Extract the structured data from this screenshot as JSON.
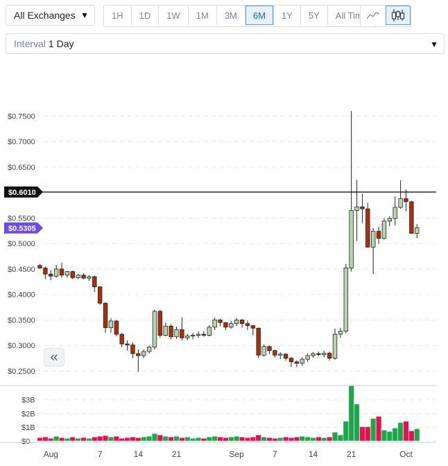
{
  "controls": {
    "exchange": "All Exchanges",
    "ranges": [
      "1H",
      "1D",
      "1W",
      "1M",
      "3M",
      "6M",
      "1Y",
      "5Y",
      "All Time"
    ],
    "active_range": "6M",
    "chart_types": [
      "line-chart-icon",
      "candlestick-icon"
    ],
    "active_type": "candlestick-icon",
    "interval_label": "Interval",
    "interval_value": "1 Day"
  },
  "chart_data": {
    "type": "candlestick",
    "price_axis": {
      "ticks": [
        "$0.7500",
        "$0.7000",
        "$0.6500",
        "$0.5500",
        "$0.5000",
        "$0.4500",
        "$0.4000",
        "$0.3500",
        "$0.3000",
        "$0.2500"
      ],
      "tick_values": [
        0.75,
        0.7,
        0.65,
        0.55,
        0.5,
        0.45,
        0.4,
        0.35,
        0.3,
        0.25
      ],
      "range": [
        0.235,
        0.775
      ]
    },
    "volume_axis": {
      "ticks": [
        "$3B",
        "$2B",
        "$1B",
        "$0"
      ],
      "tick_values": [
        3,
        2,
        1,
        0
      ],
      "range": [
        0,
        4.1
      ]
    },
    "x_labels": [
      {
        "label": "Aug",
        "index": 2
      },
      {
        "label": "7",
        "index": 11
      },
      {
        "label": "14",
        "index": 18
      },
      {
        "label": "21",
        "index": 25
      },
      {
        "label": "Sep",
        "index": 36
      },
      {
        "label": "7",
        "index": 43
      },
      {
        "label": "14",
        "index": 50
      },
      {
        "label": "21",
        "index": 57
      },
      {
        "label": "Oct",
        "index": 67
      }
    ],
    "price_lines": [
      {
        "label": "$0.6010",
        "value": 0.601,
        "color": "#111111"
      },
      {
        "label": "$0.5305",
        "value": 0.5305,
        "color": "#6c4be0"
      }
    ],
    "up_color": "#1fa64a",
    "down_color": "#e0134e",
    "candles": [
      [
        0.457,
        0.46,
        0.45,
        0.452
      ],
      [
        0.452,
        0.455,
        0.43,
        0.44
      ],
      [
        0.44,
        0.448,
        0.428,
        0.436
      ],
      [
        0.436,
        0.458,
        0.433,
        0.45
      ],
      [
        0.45,
        0.463,
        0.433,
        0.438
      ],
      [
        0.438,
        0.446,
        0.433,
        0.445
      ],
      [
        0.445,
        0.447,
        0.43,
        0.433
      ],
      [
        0.433,
        0.44,
        0.43,
        0.438
      ],
      [
        0.438,
        0.442,
        0.43,
        0.432
      ],
      [
        0.432,
        0.438,
        0.427,
        0.435
      ],
      [
        0.435,
        0.437,
        0.405,
        0.415
      ],
      [
        0.415,
        0.416,
        0.38,
        0.383
      ],
      [
        0.383,
        0.385,
        0.325,
        0.335
      ],
      [
        0.335,
        0.354,
        0.325,
        0.348
      ],
      [
        0.348,
        0.35,
        0.318,
        0.322
      ],
      [
        0.322,
        0.325,
        0.297,
        0.303
      ],
      [
        0.303,
        0.31,
        0.29,
        0.301
      ],
      [
        0.301,
        0.306,
        0.275,
        0.284
      ],
      [
        0.284,
        0.292,
        0.248,
        0.28
      ],
      [
        0.28,
        0.292,
        0.275,
        0.288
      ],
      [
        0.288,
        0.3,
        0.284,
        0.297
      ],
      [
        0.297,
        0.37,
        0.292,
        0.367
      ],
      [
        0.367,
        0.37,
        0.315,
        0.32
      ],
      [
        0.32,
        0.345,
        0.318,
        0.338
      ],
      [
        0.338,
        0.342,
        0.312,
        0.317
      ],
      [
        0.317,
        0.337,
        0.313,
        0.331
      ],
      [
        0.331,
        0.355,
        0.31,
        0.315
      ],
      [
        0.315,
        0.323,
        0.31,
        0.319
      ],
      [
        0.319,
        0.325,
        0.312,
        0.32
      ],
      [
        0.32,
        0.328,
        0.315,
        0.322
      ],
      [
        0.322,
        0.328,
        0.317,
        0.32
      ],
      [
        0.32,
        0.34,
        0.318,
        0.336
      ],
      [
        0.336,
        0.355,
        0.33,
        0.35
      ],
      [
        0.35,
        0.353,
        0.338,
        0.345
      ],
      [
        0.345,
        0.345,
        0.33,
        0.336
      ],
      [
        0.336,
        0.348,
        0.333,
        0.343
      ],
      [
        0.343,
        0.354,
        0.338,
        0.35
      ],
      [
        0.35,
        0.352,
        0.335,
        0.343
      ],
      [
        0.343,
        0.349,
        0.33,
        0.339
      ],
      [
        0.339,
        0.34,
        0.32,
        0.334
      ],
      [
        0.334,
        0.335,
        0.275,
        0.281
      ],
      [
        0.281,
        0.302,
        0.278,
        0.298
      ],
      [
        0.298,
        0.3,
        0.283,
        0.29
      ],
      [
        0.29,
        0.292,
        0.276,
        0.281
      ],
      [
        0.281,
        0.287,
        0.273,
        0.283
      ],
      [
        0.283,
        0.285,
        0.27,
        0.275
      ],
      [
        0.275,
        0.278,
        0.258,
        0.268
      ],
      [
        0.268,
        0.271,
        0.258,
        0.265
      ],
      [
        0.265,
        0.277,
        0.26,
        0.273
      ],
      [
        0.273,
        0.285,
        0.268,
        0.28
      ],
      [
        0.28,
        0.287,
        0.276,
        0.284
      ],
      [
        0.284,
        0.288,
        0.279,
        0.282
      ],
      [
        0.282,
        0.29,
        0.277,
        0.285
      ],
      [
        0.285,
        0.288,
        0.27,
        0.275
      ],
      [
        0.275,
        0.333,
        0.272,
        0.322
      ],
      [
        0.322,
        0.335,
        0.315,
        0.328
      ],
      [
        0.328,
        0.46,
        0.324,
        0.452
      ],
      [
        0.452,
        0.76,
        0.445,
        0.565
      ],
      [
        0.565,
        0.625,
        0.505,
        0.572
      ],
      [
        0.572,
        0.598,
        0.54,
        0.568
      ],
      [
        0.568,
        0.58,
        0.492,
        0.493
      ],
      [
        0.493,
        0.53,
        0.44,
        0.524
      ],
      [
        0.524,
        0.533,
        0.499,
        0.51
      ],
      [
        0.51,
        0.55,
        0.508,
        0.544
      ],
      [
        0.544,
        0.554,
        0.534,
        0.549
      ],
      [
        0.549,
        0.592,
        0.535,
        0.571
      ],
      [
        0.571,
        0.624,
        0.568,
        0.588
      ],
      [
        0.588,
        0.606,
        0.563,
        0.582
      ],
      [
        0.582,
        0.584,
        0.519,
        0.52
      ],
      [
        0.52,
        0.538,
        0.51,
        0.531
      ]
    ],
    "volumes": [
      0.25,
      0.3,
      0.2,
      0.35,
      0.25,
      0.2,
      0.3,
      0.2,
      0.25,
      0.2,
      0.3,
      0.35,
      0.4,
      0.3,
      0.35,
      0.2,
      0.25,
      0.3,
      0.25,
      0.3,
      0.35,
      0.55,
      0.45,
      0.35,
      0.3,
      0.35,
      0.25,
      0.3,
      0.2,
      0.25,
      0.2,
      0.3,
      0.35,
      0.3,
      0.25,
      0.3,
      0.35,
      0.3,
      0.25,
      0.3,
      0.45,
      0.3,
      0.25,
      0.2,
      0.25,
      0.3,
      0.25,
      0.3,
      0.35,
      0.3,
      0.25,
      0.3,
      0.25,
      0.3,
      0.65,
      0.45,
      1.45,
      4.05,
      2.7,
      1.05,
      1.05,
      1.65,
      1.8,
      0.8,
      0.7,
      0.95,
      1.35,
      1.45,
      0.75,
      0.9
    ]
  }
}
